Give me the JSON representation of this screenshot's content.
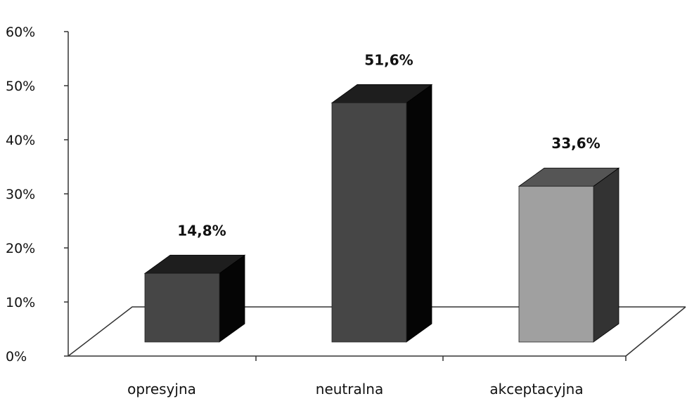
{
  "chart_data": {
    "type": "bar",
    "categories": [
      "opresyjna",
      "neutralna",
      "akceptacyjna"
    ],
    "values": [
      14.8,
      51.6,
      33.6
    ],
    "data_labels": [
      "14,8%",
      "51,6%",
      "33,6%"
    ],
    "y_ticks": [
      "0%",
      "10%",
      "20%",
      "30%",
      "40%",
      "50%",
      "60%"
    ],
    "ylim": [
      0,
      60
    ],
    "grid": false,
    "legend": "none",
    "bar_colors": [
      {
        "front": "#464646",
        "top": "#1e1e1e",
        "side": "#050505"
      },
      {
        "front": "#464646",
        "top": "#1e1e1e",
        "side": "#050505"
      },
      {
        "front": "#a0a0a0",
        "top": "#555555",
        "side": "#333333"
      }
    ]
  }
}
